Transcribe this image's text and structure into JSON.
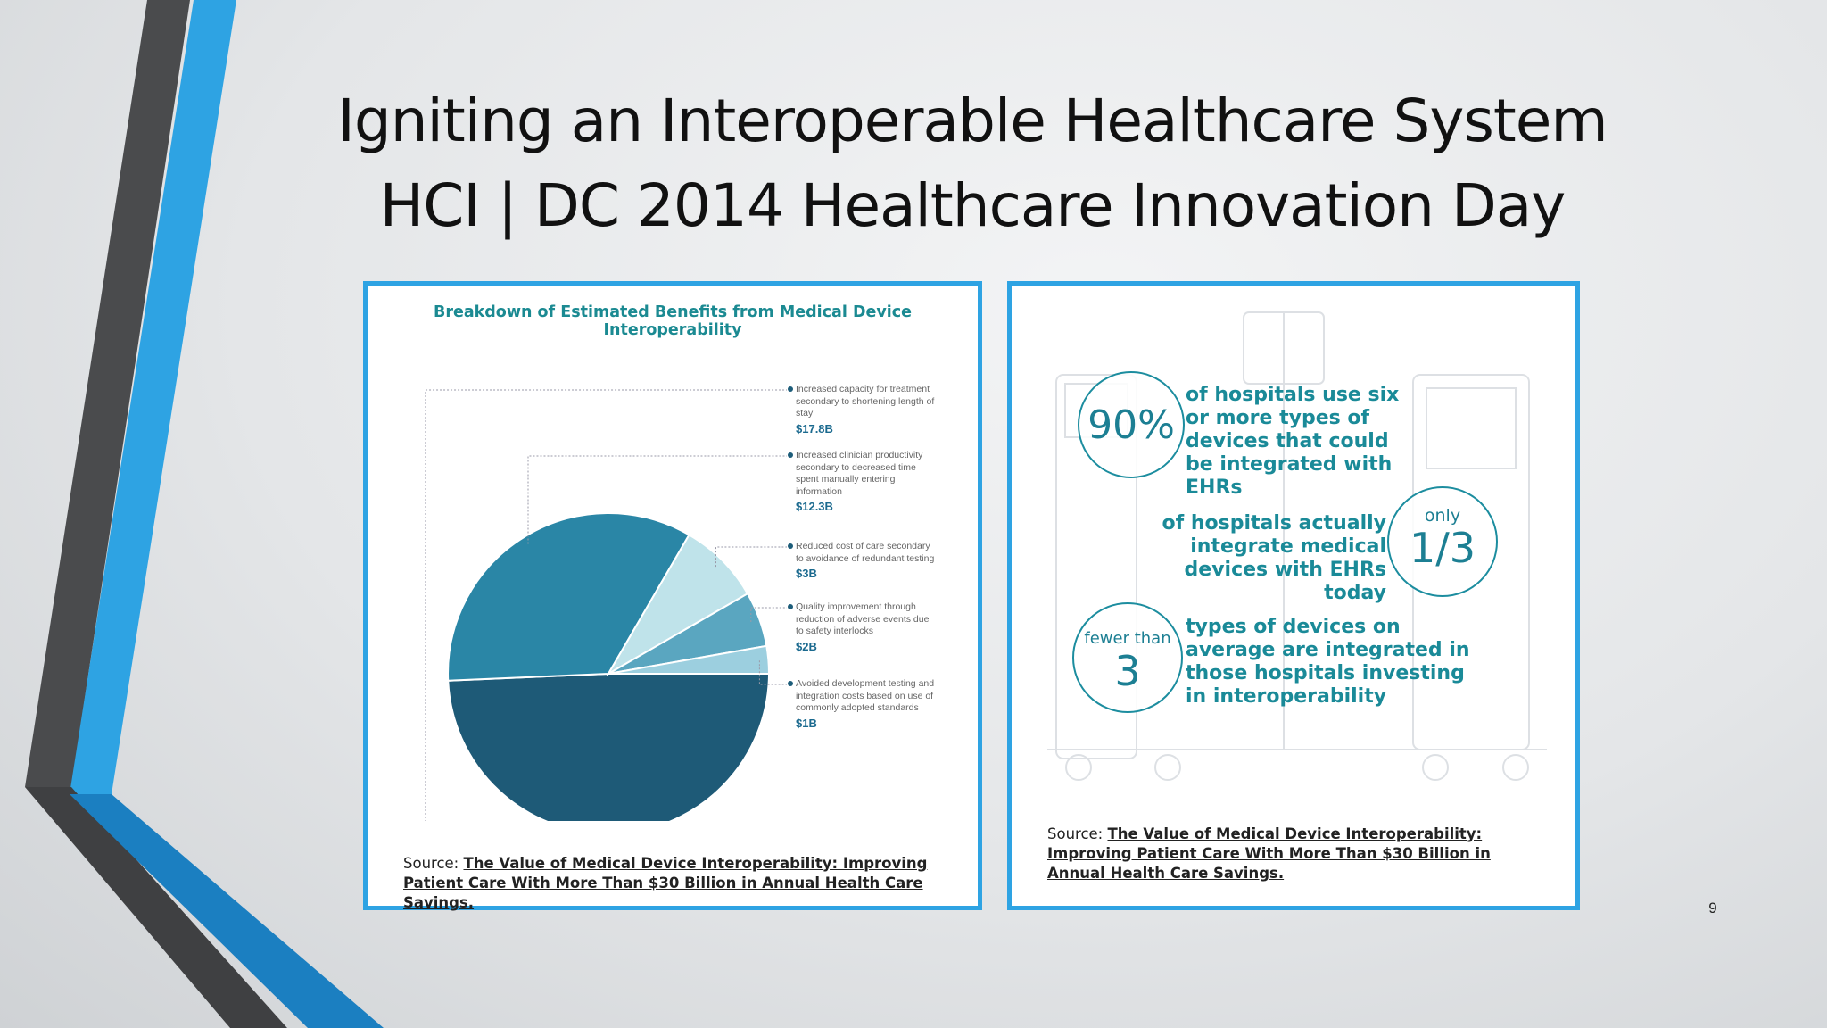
{
  "slide": {
    "title_line1": "Igniting an Interoperable Healthcare System",
    "title_line2": "HCI | DC 2014 Healthcare Innovation Day",
    "page_number": "9",
    "accent_colors": [
      "#2ea3e3",
      "#4a4b4d",
      "#1b7fc1"
    ]
  },
  "chart_data": {
    "type": "pie",
    "title": "Breakdown of Estimated Benefits from Medical Device Interoperability",
    "unit": "$B",
    "slices": [
      {
        "label": "Increased capacity for treatment secondary to shortening length of stay",
        "value": 17.8,
        "display": "$17.8B",
        "color": "#1e5a77"
      },
      {
        "label": "Increased clinician productivity secondary to decreased time spent manually entering information",
        "value": 12.3,
        "display": "$12.3B",
        "color": "#2a86a6"
      },
      {
        "label": "Reduced cost of care secondary to avoidance of redundant testing",
        "value": 3,
        "display": "$3B",
        "color": "#bfe3ea"
      },
      {
        "label": "Quality improvement through reduction of adverse events due to safety interlocks",
        "value": 2,
        "display": "$2B",
        "color": "#5aa6c0"
      },
      {
        "label": "Avoided development testing and integration costs based on use of commonly adopted standards",
        "value": 1,
        "display": "$1B",
        "color": "#9ccfdf"
      }
    ]
  },
  "infographic": {
    "stats": [
      {
        "figure": "90%",
        "prefix": "",
        "text": "of hospitals use six or more types of devices that could be integrated with EHRs"
      },
      {
        "figure": "1/3",
        "prefix": "only",
        "text": "of hospitals actually integrate medical devices with EHRs today"
      },
      {
        "figure": "3",
        "prefix": "fewer than",
        "text": "types of devices on average are integrated in those hospitals investing in interoperability"
      }
    ]
  },
  "sources": {
    "label": "Source:",
    "title": "The Value of Medical Device Interoperability: Improving Patient Care With More Than $30 Billion in Annual Health Care Savings."
  }
}
